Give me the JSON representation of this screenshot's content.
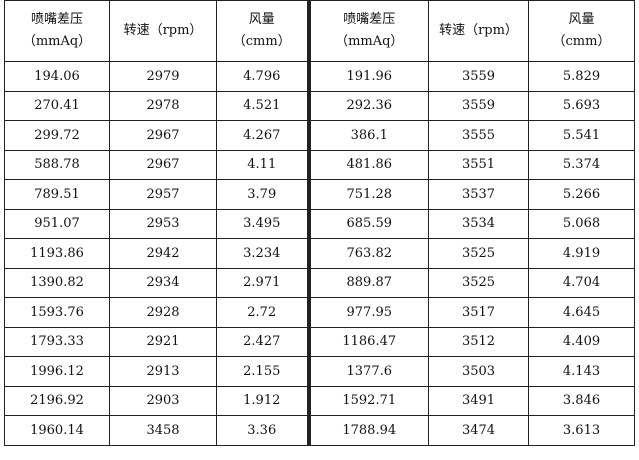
{
  "table": {
    "headers": {
      "left": [
        {
          "line1": "喷嘴差压",
          "line2": "（mmAq）"
        },
        {
          "line1": "转速（rpm）",
          "line2": ""
        },
        {
          "line1": "风量",
          "line2": "（cmm）"
        }
      ],
      "right": [
        {
          "line1": "喷嘴差压",
          "line2": "（mmAq）"
        },
        {
          "line1": "转速（rpm）",
          "line2": ""
        },
        {
          "line1": "风量",
          "line2": "（cmm）"
        }
      ]
    },
    "rows": [
      [
        "194.06",
        "2979",
        "4.796",
        "191.96",
        "3559",
        "5.829"
      ],
      [
        "270.41",
        "2978",
        "4.521",
        "292.36",
        "3559",
        "5.693"
      ],
      [
        "299.72",
        "2967",
        "4.267",
        "386.1",
        "3555",
        "5.541"
      ],
      [
        "588.78",
        "2967",
        "4.11",
        "481.86",
        "3551",
        "5.374"
      ],
      [
        "789.51",
        "2957",
        "3.79",
        "751.28",
        "3537",
        "5.266"
      ],
      [
        "951.07",
        "2953",
        "3.495",
        "685.59",
        "3534",
        "5.068"
      ],
      [
        "1193.86",
        "2942",
        "3.234",
        "763.82",
        "3525",
        "4.919"
      ],
      [
        "1390.82",
        "2934",
        "2.971",
        "889.87",
        "3525",
        "4.704"
      ],
      [
        "1593.76",
        "2928",
        "2.72",
        "977.95",
        "3517",
        "4.645"
      ],
      [
        "1793.33",
        "2921",
        "2.427",
        "1186.47",
        "3512",
        "4.409"
      ],
      [
        "1996.12",
        "2913",
        "2.155",
        "1377.6",
        "3503",
        "4.143"
      ],
      [
        "2196.92",
        "2903",
        "1.912",
        "1592.71",
        "3491",
        "3.846"
      ],
      [
        "1960.14",
        "3458",
        "3.36",
        "1788.94",
        "3474",
        "3.613"
      ]
    ]
  }
}
